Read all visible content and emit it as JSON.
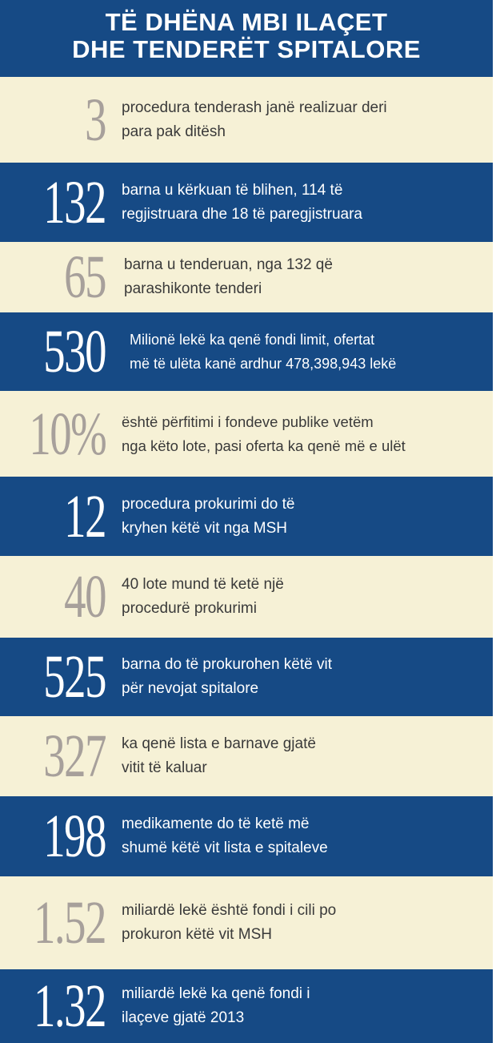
{
  "header": {
    "line1": "TË DHËNA MBI ILAÇET",
    "line2": "DHE TENDERËT SPITALORE"
  },
  "colors": {
    "navy": "#164a85",
    "cream": "#f6f1d6",
    "gray_number": "#a7a09b"
  },
  "facts": [
    {
      "number": "3",
      "line1": "procedura tenderash janë realizuar deri",
      "line2": "para pak ditësh"
    },
    {
      "number": "132",
      "line1": "barna u kërkuan të blihen, 114 të",
      "line2": "regjistruara dhe 18 të paregjistruara"
    },
    {
      "number": "65",
      "line1": "barna u tenderuan, nga 132 që",
      "line2": "parashikonte tenderi"
    },
    {
      "number": "530",
      "line1": "Milionë lekë ka qenë fondi limit, ofertat",
      "line2": "më të ulëta kanë ardhur 478,398,943 lekë"
    },
    {
      "number": "10%",
      "line1": "është përfitimi i fondeve publike vetëm",
      "line2": "nga këto lote, pasi oferta ka qenë më e ulët"
    },
    {
      "number": "12",
      "line1": "procedura prokurimi do të",
      "line2": "kryhen këtë vit nga MSH"
    },
    {
      "number": "40",
      "line1": "40 lote mund të ketë një",
      "line2": "procedurë prokurimi"
    },
    {
      "number": "525",
      "line1": "barna do të prokurohen këtë vit",
      "line2": "për nevojat spitalore"
    },
    {
      "number": "327",
      "line1": "ka qenë lista e barnave gjatë",
      "line2": "vitit të kaluar"
    },
    {
      "number": "198",
      "line1": "medikamente do të ketë më",
      "line2": "shumë këtë vit lista e spitaleve"
    },
    {
      "number": "1.52",
      "line1": "miliardë lekë është fondi i cili po",
      "line2": "prokuron këtë vit MSH"
    },
    {
      "number": "1.32",
      "line1": "miliardë lekë ka qenë fondi i",
      "line2": "ilaçeve gjatë 2013"
    }
  ]
}
